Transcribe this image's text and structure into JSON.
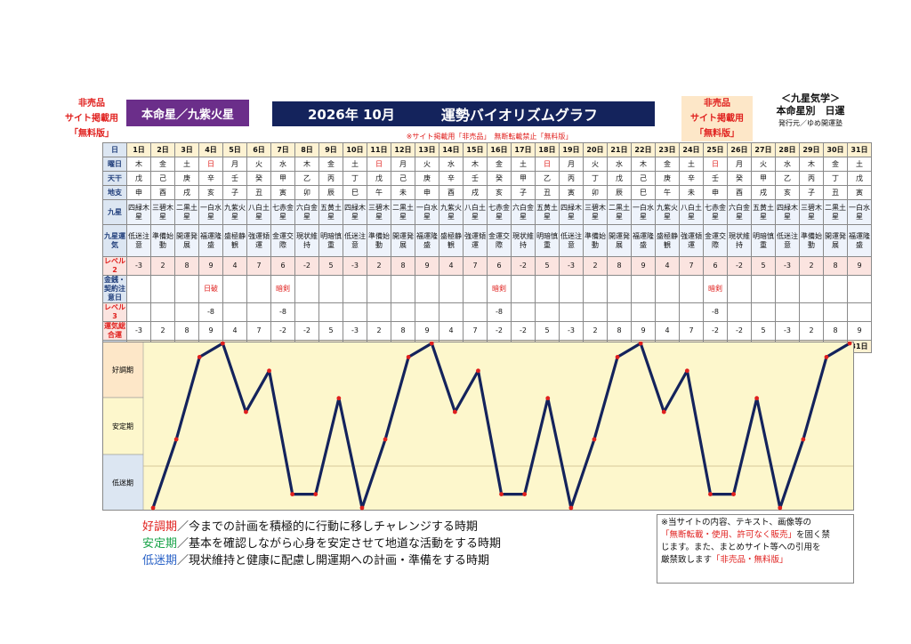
{
  "badge_left": [
    "非売品",
    "サイト掲載用",
    "「無料版」"
  ],
  "honmei": "本命星／九紫火星",
  "title_year_month": "2026年 10月",
  "title_main": "運勢バイオリズムグラフ",
  "badge_right": [
    "非売品",
    "サイト掲載用",
    "「無料版」"
  ],
  "kyusei_title": "＜九星気学＞",
  "kyusei_sub": "本命星別　日運",
  "publisher": "発行元／ゆめ開運塾",
  "notice_top": "※サイト掲載用「非売品」　無断転載禁止「無料版」",
  "row_labels": {
    "day": "日",
    "weekday": "曜日",
    "tenkan": "天干",
    "chishi": "地支",
    "kyusei": "九星",
    "unki": "九星運気",
    "level2": "レベル2",
    "money": "金銭・契約注意日",
    "level3": "レベル3",
    "sogo": "運気総合運"
  },
  "days": [
    "1日",
    "2日",
    "3日",
    "4日",
    "5日",
    "6日",
    "7日",
    "8日",
    "9日",
    "10日",
    "11日",
    "12日",
    "13日",
    "14日",
    "15日",
    "16日",
    "17日",
    "18日",
    "19日",
    "20日",
    "21日",
    "22日",
    "23日",
    "24日",
    "25日",
    "26日",
    "27日",
    "28日",
    "29日",
    "30日",
    "31日"
  ],
  "weekday": [
    "木",
    "金",
    "土",
    "日",
    "月",
    "火",
    "水",
    "木",
    "金",
    "土",
    "日",
    "月",
    "火",
    "水",
    "木",
    "金",
    "土",
    "日",
    "月",
    "火",
    "水",
    "木",
    "金",
    "土",
    "日",
    "月",
    "火",
    "水",
    "木",
    "金",
    "土"
  ],
  "tenkan": [
    "戊",
    "己",
    "庚",
    "辛",
    "壬",
    "癸",
    "甲",
    "乙",
    "丙",
    "丁",
    "戊",
    "己",
    "庚",
    "辛",
    "壬",
    "癸",
    "甲",
    "乙",
    "丙",
    "丁",
    "戊",
    "己",
    "庚",
    "辛",
    "壬",
    "癸",
    "甲",
    "乙",
    "丙",
    "丁",
    "戊"
  ],
  "chishi": [
    "申",
    "酉",
    "戌",
    "亥",
    "子",
    "丑",
    "寅",
    "卯",
    "辰",
    "巳",
    "午",
    "未",
    "申",
    "酉",
    "戌",
    "亥",
    "子",
    "丑",
    "寅",
    "卯",
    "辰",
    "巳",
    "午",
    "未",
    "申",
    "酉",
    "戌",
    "亥",
    "子",
    "丑",
    "寅"
  ],
  "kyusei_row": [
    "四緑木星",
    "三碧木星",
    "二黒土星",
    "一白水星",
    "九紫火星",
    "八白土星",
    "七赤金星",
    "六白金星",
    "五黄土星",
    "四緑木星",
    "三碧木星",
    "二黒土星",
    "一白水星",
    "九紫火星",
    "八白土星",
    "七赤金星",
    "六白金星",
    "五黄土星",
    "四緑木星",
    "三碧木星",
    "二黒土星",
    "一白水星",
    "九紫火星",
    "八白土星",
    "七赤金星",
    "六白金星",
    "五黄土星",
    "四緑木星",
    "三碧木星",
    "二黒土星",
    "一白水星"
  ],
  "unki_row": [
    "低迷注意",
    "準備始動",
    "開運発展",
    "福運隆盛",
    "盛極静観",
    "強運傾運",
    "金運交際",
    "現状維持",
    "明暗慎重",
    "低迷注意",
    "準備始動",
    "開運発展",
    "福運隆盛",
    "盛極静観",
    "強運傾運",
    "金運交際",
    "現状維持",
    "明暗慎重",
    "低迷注意",
    "準備始動",
    "開運発展",
    "福運隆盛",
    "盛極静観",
    "強運傾運",
    "金運交際",
    "現状維持",
    "明暗慎重",
    "低迷注意",
    "準備始動",
    "開運発展",
    "福運隆盛"
  ],
  "level2": [
    "-3",
    "2",
    "8",
    "9",
    "4",
    "7",
    "6",
    "-2",
    "5",
    "-3",
    "2",
    "8",
    "9",
    "4",
    "7",
    "6",
    "-2",
    "5",
    "-3",
    "2",
    "8",
    "9",
    "4",
    "7",
    "6",
    "-2",
    "5",
    "-3",
    "2",
    "8",
    "9"
  ],
  "money": [
    "",
    "",
    "",
    "日破",
    "",
    "",
    "暗剣",
    "",
    "",
    "",
    "",
    "",
    "",
    "",
    "",
    "暗剣",
    "",
    "",
    "",
    "",
    "",
    "",
    "",
    "",
    "暗剣",
    "",
    "",
    "",
    "",
    "",
    ""
  ],
  "level3": [
    "",
    "",
    "",
    "-8",
    "",
    "",
    "-8",
    "",
    "",
    "",
    "",
    "",
    "",
    "",
    "",
    "-8",
    "",
    "",
    "",
    "",
    "",
    "",
    "",
    "",
    "-8",
    "",
    "",
    "",
    "",
    "",
    ""
  ],
  "sogo": [
    "-3",
    "2",
    "8",
    "9",
    "4",
    "7",
    "-2",
    "-2",
    "5",
    "-3",
    "2",
    "8",
    "9",
    "4",
    "7",
    "-2",
    "-2",
    "5",
    "-3",
    "2",
    "8",
    "9",
    "4",
    "7",
    "-2",
    "-2",
    "5",
    "-3",
    "2",
    "8",
    "9"
  ],
  "zones": [
    "好調期",
    "安定期",
    "低迷期"
  ],
  "legend": {
    "good_term": "好調期",
    "good_text": "／今までの計画を積極的に行動に移しチャレンジする時期",
    "stable_term": "安定期",
    "stable_text": "／基本を確認しながら心身を安定させて地道な活動をする時期",
    "low_term": "低迷期",
    "low_text": "／現状維持と健康に配慮し開運期への計画・準備をする時期"
  },
  "copy_note": {
    "l1": "※当サイトの内容、テキスト、画像等の",
    "l2": "「無断転載・使用、許可なく販売」",
    "l2b": "を固く禁",
    "l3": "じます。また、まとめサイト等への引用を",
    "l4": "厳禁致します",
    "l4b": "「非売品・無料版」"
  },
  "chart_data": {
    "type": "line",
    "x": [
      1,
      2,
      3,
      4,
      5,
      6,
      7,
      8,
      9,
      10,
      11,
      12,
      13,
      14,
      15,
      16,
      17,
      18,
      19,
      20,
      21,
      22,
      23,
      24,
      25,
      26,
      27,
      28,
      29,
      30,
      31
    ],
    "categories": [
      "1日",
      "2日",
      "3日",
      "4日",
      "5日",
      "6日",
      "7日",
      "8日",
      "9日",
      "10日",
      "11日",
      "12日",
      "13日",
      "14日",
      "15日",
      "16日",
      "17日",
      "18日",
      "19日",
      "20日",
      "21日",
      "22日",
      "23日",
      "24日",
      "25日",
      "26日",
      "27日",
      "28日",
      "29日",
      "30日",
      "31日"
    ],
    "series": [
      {
        "values": [
          -3,
          2,
          8,
          9,
          4,
          7,
          -2,
          -2,
          5,
          -3,
          2,
          8,
          9,
          4,
          7,
          -2,
          -2,
          5,
          -3,
          2,
          8,
          9,
          4,
          7,
          -2,
          -2,
          5,
          -3,
          2,
          8,
          9
        ]
      }
    ],
    "ylim": [
      -3,
      9
    ],
    "line_color": "#14235c",
    "marker_color": "#e0201e",
    "zone_colors": [
      "#fde7c8",
      "#fdf7cc",
      "#dce6f2"
    ]
  }
}
